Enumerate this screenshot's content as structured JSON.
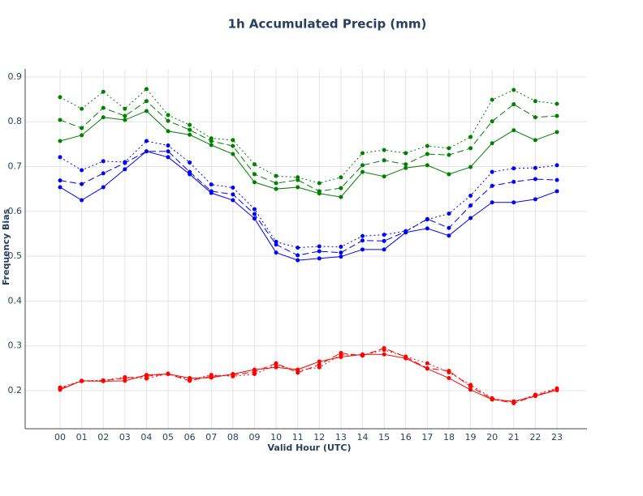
{
  "chart_data": {
    "type": "line",
    "title": "1h Accumulated Precip (mm)",
    "x_label": "Valid Hour (UTC)",
    "y_label": "Frequency Bias",
    "categories": [
      "00",
      "01",
      "02",
      "03",
      "04",
      "05",
      "06",
      "07",
      "08",
      "09",
      "10",
      "11",
      "12",
      "13",
      "14",
      "15",
      "16",
      "17",
      "18",
      "19",
      "20",
      "21",
      "22",
      "23"
    ],
    "ylim": [
      0.115,
      0.918
    ],
    "yticks": [
      0.2,
      0.3,
      0.4,
      0.5,
      0.6,
      0.7,
      0.8,
      0.9
    ],
    "grid": true,
    "series": [
      {
        "color": "#008000",
        "dash": "solid",
        "values": [
          0.757,
          0.77,
          0.81,
          0.804,
          0.824,
          0.779,
          0.771,
          0.748,
          0.728,
          0.665,
          0.65,
          0.654,
          0.64,
          0.632,
          0.688,
          0.678,
          0.697,
          0.703,
          0.683,
          0.699,
          0.752,
          0.781,
          0.759,
          0.777
        ]
      },
      {
        "color": "#008000",
        "dash": "dash",
        "values": [
          0.804,
          0.786,
          0.831,
          0.813,
          0.846,
          0.802,
          0.782,
          0.757,
          0.746,
          0.683,
          0.663,
          0.67,
          0.645,
          0.652,
          0.703,
          0.714,
          0.705,
          0.728,
          0.726,
          0.741,
          0.801,
          0.839,
          0.81,
          0.813
        ]
      },
      {
        "color": "#008000",
        "dash": "dot",
        "values": [
          0.855,
          0.829,
          0.867,
          0.829,
          0.873,
          0.815,
          0.793,
          0.763,
          0.759,
          0.705,
          0.679,
          0.676,
          0.663,
          0.676,
          0.73,
          0.737,
          0.73,
          0.746,
          0.741,
          0.766,
          0.849,
          0.871,
          0.846,
          0.84
        ]
      },
      {
        "color": "#0000ff",
        "dash": "solid",
        "values": [
          0.654,
          0.625,
          0.654,
          0.694,
          0.734,
          0.721,
          0.683,
          0.641,
          0.625,
          0.584,
          0.508,
          0.491,
          0.495,
          0.499,
          0.515,
          0.515,
          0.553,
          0.562,
          0.546,
          0.585,
          0.62,
          0.62,
          0.627,
          0.645
        ]
      },
      {
        "color": "#0000ff",
        "dash": "dash",
        "values": [
          0.669,
          0.661,
          0.685,
          0.708,
          0.734,
          0.734,
          0.688,
          0.645,
          0.638,
          0.594,
          0.526,
          0.502,
          0.511,
          0.508,
          0.535,
          0.534,
          0.555,
          0.583,
          0.563,
          0.613,
          0.657,
          0.666,
          0.672,
          0.67
        ]
      },
      {
        "color": "#0000ff",
        "dash": "dot",
        "values": [
          0.721,
          0.692,
          0.712,
          0.71,
          0.757,
          0.747,
          0.709,
          0.66,
          0.653,
          0.605,
          0.532,
          0.519,
          0.522,
          0.521,
          0.545,
          0.548,
          0.556,
          0.582,
          0.595,
          0.635,
          0.688,
          0.696,
          0.697,
          0.703
        ]
      },
      {
        "color": "#ff0000",
        "dash": "solid",
        "values": [
          0.202,
          0.222,
          0.221,
          0.222,
          0.235,
          0.237,
          0.228,
          0.229,
          0.237,
          0.247,
          0.252,
          0.247,
          0.265,
          0.275,
          0.281,
          0.281,
          0.272,
          0.249,
          0.228,
          0.202,
          0.18,
          0.176,
          0.188,
          0.201
        ]
      },
      {
        "color": "#ff0000",
        "dash": "dash",
        "values": [
          0.205,
          0.221,
          0.222,
          0.228,
          0.232,
          0.237,
          0.222,
          0.232,
          0.235,
          0.242,
          0.261,
          0.24,
          0.258,
          0.284,
          0.278,
          0.295,
          0.275,
          0.25,
          0.244,
          0.209,
          0.181,
          0.172,
          0.188,
          0.204
        ]
      },
      {
        "color": "#ff0000",
        "dash": "dot",
        "values": [
          0.207,
          0.222,
          0.223,
          0.23,
          0.227,
          0.238,
          0.224,
          0.235,
          0.232,
          0.237,
          0.257,
          0.245,
          0.252,
          0.28,
          0.279,
          0.291,
          0.276,
          0.261,
          0.241,
          0.213,
          0.183,
          0.174,
          0.191,
          0.205
        ]
      }
    ]
  }
}
